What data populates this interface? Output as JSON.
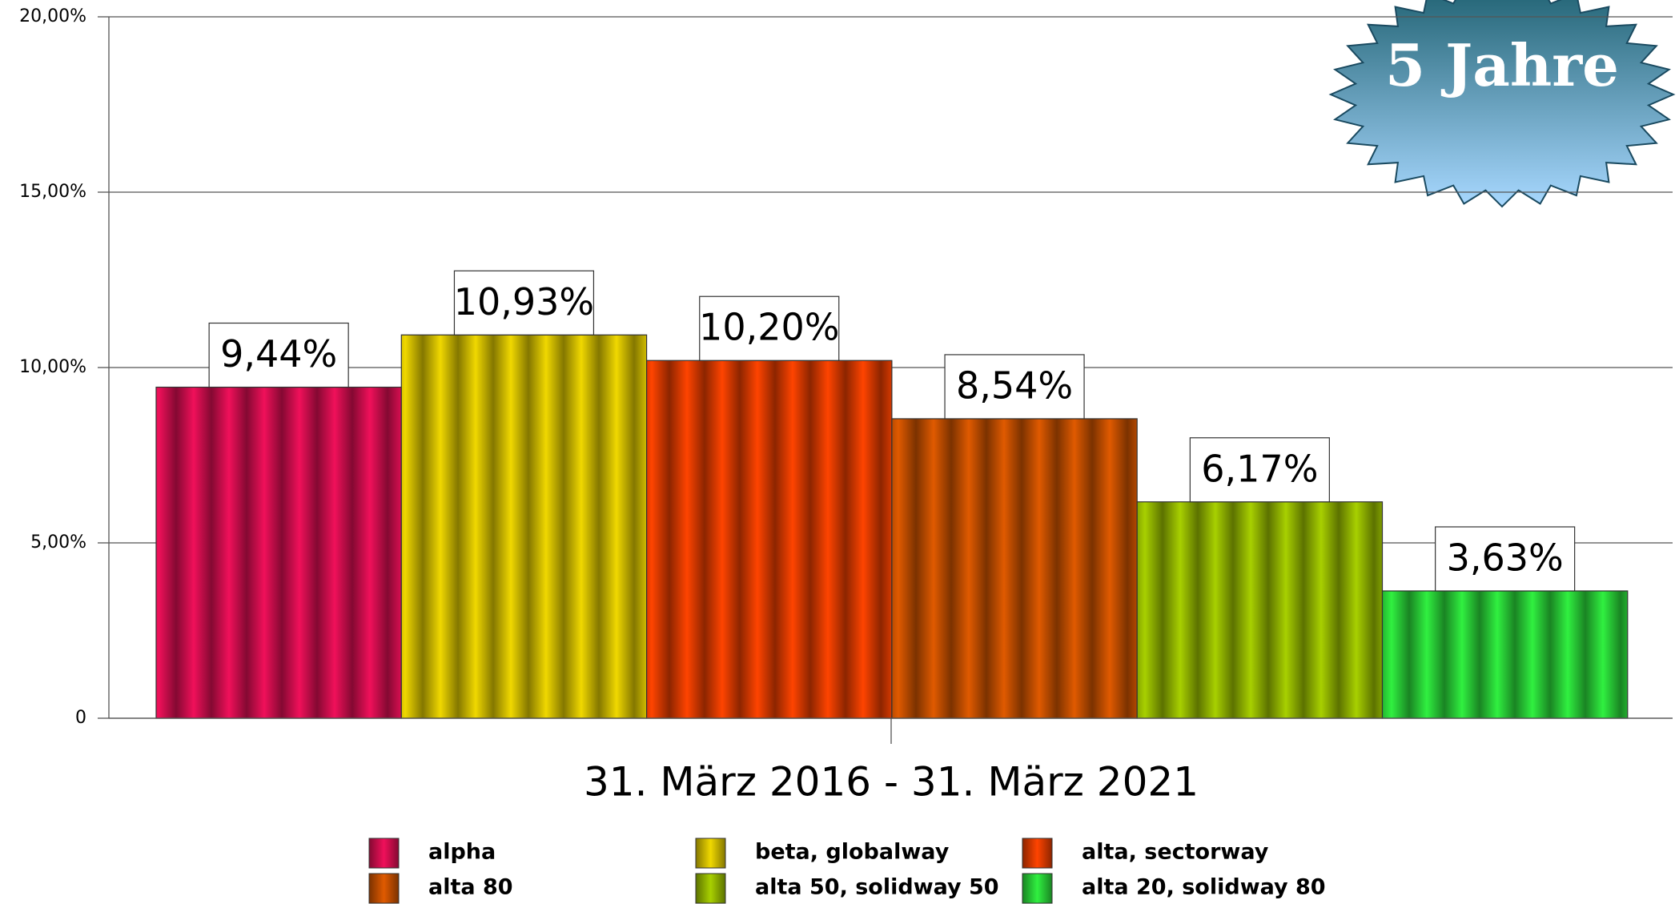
{
  "chart_data": {
    "type": "bar",
    "badge": "5 Jahre",
    "categories": [
      "31. März 2016 - 31. März 2021"
    ],
    "series": [
      {
        "name": "alpha",
        "color": "#f0105a",
        "values": [
          9.44
        ],
        "value_labels": [
          "9,44%"
        ]
      },
      {
        "name": "beta, globalway",
        "color": "#f0d800",
        "values": [
          10.93
        ],
        "value_labels": [
          "10,93%"
        ]
      },
      {
        "name": "alta, sectorway",
        "color": "#ff4400",
        "values": [
          10.2
        ],
        "value_labels": [
          "10,20%"
        ]
      },
      {
        "name": "alta 80",
        "color": "#e05a00",
        "values": [
          8.54
        ],
        "value_labels": [
          "8,54%"
        ]
      },
      {
        "name": "alta 50, solidway 50",
        "color": "#a8d000",
        "values": [
          6.17
        ],
        "value_labels": [
          "6,17%"
        ]
      },
      {
        "name": "alta 20, solidway 80",
        "color": "#30f040",
        "values": [
          3.63
        ],
        "value_labels": [
          "3,63%"
        ]
      }
    ],
    "ylim": [
      0,
      20
    ],
    "yticks": [
      0,
      {
        "value": 5,
        "label": "5,00%"
      },
      {
        "value": 10,
        "label": "10,00%"
      },
      {
        "value": 15,
        "label": "15,00%"
      },
      {
        "value": 20,
        "label": "20,00%"
      }
    ],
    "grid": true
  }
}
